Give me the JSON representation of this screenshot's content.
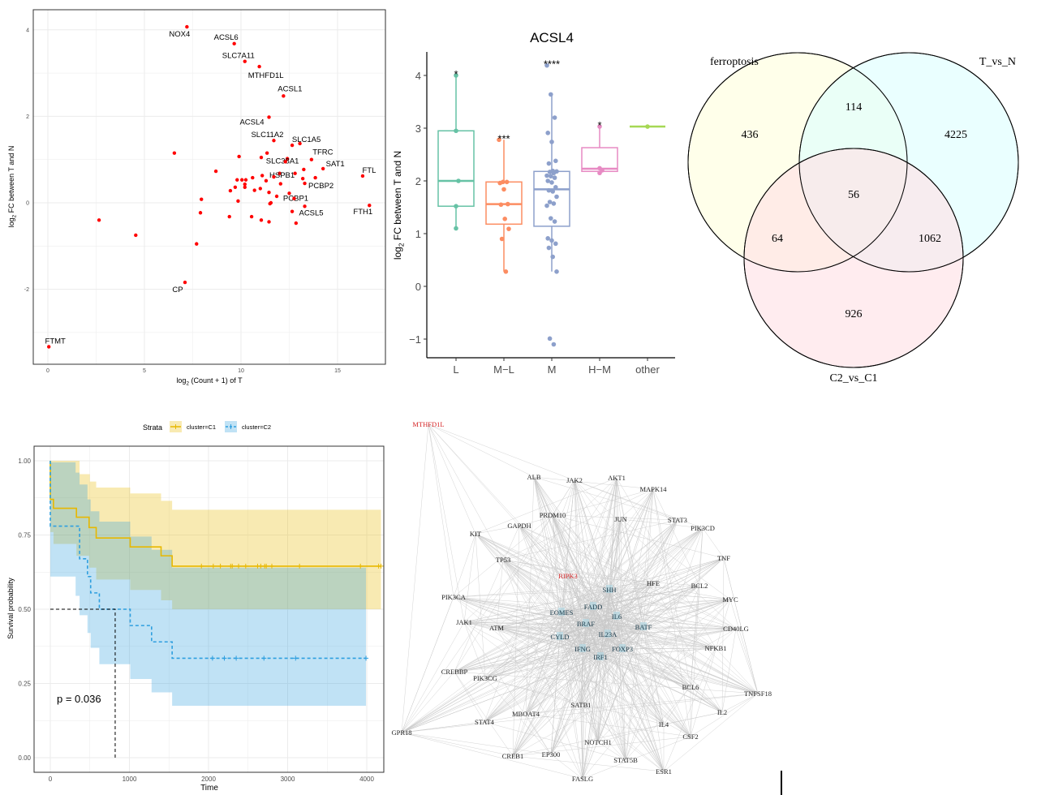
{
  "chart_data": [
    {
      "type": "scatter",
      "title": "",
      "xlabel": "log2 (Count + 1) of T",
      "xlabel_parts": [
        "log",
        "2",
        " (Count + 1) of T"
      ],
      "ylabel_parts": [
        "log",
        "2",
        " FC between T and N"
      ],
      "xlim": [
        -0.8,
        17.5
      ],
      "ylim": [
        -3.7,
        4.4
      ],
      "xticks": [
        "0",
        "5",
        "10",
        "15"
      ],
      "yticks": [
        "-2",
        "0",
        "2",
        "4"
      ],
      "grid": true,
      "point_color": "#ff0000",
      "points": [
        {
          "x": 7.2,
          "y": 4.07,
          "label": "NOX4"
        },
        {
          "x": 9.65,
          "y": 3.68,
          "label": "ACSL6"
        },
        {
          "x": 10.2,
          "y": 3.27,
          "label": "SLC7A11"
        },
        {
          "x": 10.95,
          "y": 3.15,
          "label": "MTHFD1L"
        },
        {
          "x": 12.2,
          "y": 2.47,
          "label": "ACSL1"
        },
        {
          "x": 11.45,
          "y": 1.98,
          "label": "ACSL4"
        },
        {
          "x": 11.7,
          "y": 1.44,
          "label": "SLC11A2"
        },
        {
          "x": 13.05,
          "y": 1.37,
          "label": "SLC1A5"
        },
        {
          "x": 13.65,
          "y": 1.0,
          "label": "TFRC"
        },
        {
          "x": 12.4,
          "y": 1.02,
          "label": "SLC38A1"
        },
        {
          "x": 12.0,
          "y": 0.68,
          "label": "HSPB1"
        },
        {
          "x": 14.25,
          "y": 0.79,
          "label": "SAT1"
        },
        {
          "x": 16.3,
          "y": 0.62,
          "label": "FTL"
        },
        {
          "x": 13.85,
          "y": 0.58,
          "label": "PCBP2"
        },
        {
          "x": 12.5,
          "y": 0.22,
          "label": "PCBP1"
        },
        {
          "x": 13.3,
          "y": -0.08,
          "label": "ACSL5"
        },
        {
          "x": 16.65,
          "y": -0.06,
          "label": "FTH1"
        },
        {
          "x": 7.1,
          "y": -1.84,
          "label": "CP"
        },
        {
          "x": 0.05,
          "y": -3.33,
          "label": "FTMT"
        },
        {
          "x": 6.55,
          "y": 1.15
        },
        {
          "x": 2.65,
          "y": -0.4
        },
        {
          "x": 4.55,
          "y": -0.75
        },
        {
          "x": 7.7,
          "y": -0.95
        },
        {
          "x": 7.9,
          "y": -0.23
        },
        {
          "x": 7.95,
          "y": 0.08
        },
        {
          "x": 8.7,
          "y": 0.73
        },
        {
          "x": 9.4,
          "y": -0.32
        },
        {
          "x": 9.45,
          "y": 0.28
        },
        {
          "x": 9.7,
          "y": 0.36
        },
        {
          "x": 9.8,
          "y": 0.53
        },
        {
          "x": 9.85,
          "y": 0.04
        },
        {
          "x": 9.9,
          "y": 1.07
        },
        {
          "x": 10.05,
          "y": 0.53
        },
        {
          "x": 10.2,
          "y": 0.43
        },
        {
          "x": 10.2,
          "y": 0.36
        },
        {
          "x": 10.25,
          "y": 0.53
        },
        {
          "x": 10.6,
          "y": 0.58
        },
        {
          "x": 10.55,
          "y": -0.32
        },
        {
          "x": 10.7,
          "y": 0.29
        },
        {
          "x": 11.0,
          "y": 0.33
        },
        {
          "x": 11.05,
          "y": 1.05
        },
        {
          "x": 11.05,
          "y": -0.4
        },
        {
          "x": 11.1,
          "y": 0.63
        },
        {
          "x": 11.3,
          "y": 0.51
        },
        {
          "x": 11.35,
          "y": 1.15
        },
        {
          "x": 11.45,
          "y": 0.24
        },
        {
          "x": 11.45,
          "y": -0.44
        },
        {
          "x": 11.5,
          "y": -0.02
        },
        {
          "x": 11.55,
          "y": 0.0
        },
        {
          "x": 11.7,
          "y": 0.6
        },
        {
          "x": 11.85,
          "y": 0.15
        },
        {
          "x": 12.05,
          "y": 0.44
        },
        {
          "x": 12.3,
          "y": 0.95
        },
        {
          "x": 12.65,
          "y": 1.33
        },
        {
          "x": 12.65,
          "y": -0.2
        },
        {
          "x": 12.75,
          "y": 0.1
        },
        {
          "x": 12.8,
          "y": 0.68
        },
        {
          "x": 12.85,
          "y": -0.47
        },
        {
          "x": 13.25,
          "y": 0.77
        },
        {
          "x": 13.2,
          "y": 0.56
        },
        {
          "x": 13.3,
          "y": 0.45
        }
      ]
    },
    {
      "type": "box",
      "title": "ACSL4",
      "ylabel_parts": [
        "log",
        "2",
        " FC between T and N"
      ],
      "ylim": [
        -1.3,
        4.4
      ],
      "yticks": [
        "-1",
        "0",
        "1",
        "2",
        "3",
        "4"
      ],
      "yticks_display": [
        "−1",
        "0",
        "1",
        "2",
        "3",
        "4"
      ],
      "categories": [
        "L",
        "M−L",
        "M",
        "H−M",
        "other"
      ],
      "groups": [
        {
          "name": "L",
          "color": "#66c2a5",
          "q1": 1.52,
          "median": 2.0,
          "q3": 2.95,
          "whisker_low": 1.1,
          "whisker_high": 4.0,
          "significance": "*",
          "points": [
            4.0,
            2.95,
            2.0,
            1.52,
            1.1
          ]
        },
        {
          "name": "M−L",
          "color": "#fc8d62",
          "q1": 1.18,
          "median": 1.56,
          "q3": 1.98,
          "whisker_low": 0.28,
          "whisker_high": 2.78,
          "significance": "***",
          "points": [
            2.78,
            1.98,
            1.98,
            1.96,
            1.84,
            1.56,
            1.55,
            1.28,
            1.09,
            0.9,
            0.28
          ]
        },
        {
          "name": "M",
          "color": "#8da0cb",
          "q1": 1.14,
          "median": 1.84,
          "q3": 2.18,
          "whisker_low": 0.28,
          "whisker_high": 3.64,
          "significance": "****",
          "points": [
            4.19,
            3.64,
            3.2,
            2.91,
            2.74,
            2.38,
            2.33,
            2.19,
            2.18,
            2.17,
            2.15,
            2.1,
            2.09,
            2.06,
            2.0,
            1.97,
            1.88,
            1.82,
            1.8,
            1.7,
            1.6,
            1.57,
            1.53,
            1.29,
            1.23,
            0.91,
            0.87,
            0.81,
            0.73,
            0.56,
            0.28,
            -0.99,
            -1.1
          ]
        },
        {
          "name": "H−M",
          "color": "#e78ac3",
          "q1": 2.18,
          "median": 2.23,
          "q3": 2.63,
          "whisker_low": 2.15,
          "whisker_high": 3.03,
          "significance": "*",
          "points": [
            3.03,
            2.24,
            2.2,
            2.15
          ]
        },
        {
          "name": "other",
          "color": "#a6d854",
          "q1": 3.03,
          "median": 3.03,
          "q3": 3.03,
          "whisker_low": 3.03,
          "whisker_high": 3.03,
          "significance": "",
          "points": [
            3.03
          ]
        }
      ]
    },
    {
      "type": "venn",
      "sets": [
        {
          "name": "ferroptosis",
          "color": "#ffffdc"
        },
        {
          "name": "T_vs_N",
          "color": "#dcffff"
        },
        {
          "name": "C2_vs_C1",
          "color": "#ffdfe4"
        }
      ],
      "regions": {
        "ferroptosis_only": "436",
        "T_vs_N_only": "4225",
        "C2_vs_C1_only": "926",
        "ferroptosis_T_vs_N": "114",
        "ferroptosis_C2_vs_C1": "64",
        "T_vs_N_C2_vs_C1": "1062",
        "all_three": "56"
      }
    },
    {
      "type": "line",
      "subtype": "kaplan-meier",
      "xlabel": "Time",
      "ylabel": "Survival probability",
      "xlim": [
        -200,
        4200
      ],
      "ylim": [
        -0.04,
        1.05
      ],
      "xticks": [
        "0",
        "1000",
        "2000",
        "3000",
        "4000"
      ],
      "yticks": [
        "0.00",
        "0.25",
        "0.50",
        "0.75",
        "1.00"
      ],
      "legend": {
        "title": "Strata",
        "position": "top"
      },
      "pvalue": "p = 0.036",
      "median_survival_time": 820,
      "series": [
        {
          "name": "cluster=C1",
          "color": "#e7b800",
          "ci_color": "#e7b800",
          "dashed": false,
          "steps": [
            [
              0,
              1.0
            ],
            [
              0,
              0.87
            ],
            [
              40,
              0.84
            ],
            [
              330,
              0.81
            ],
            [
              490,
              0.775
            ],
            [
              580,
              0.74
            ],
            [
              1010,
              0.71
            ],
            [
              1400,
              0.68
            ],
            [
              1540,
              0.645
            ]
          ],
          "end": 4180,
          "ci_upper": [
            [
              0,
              1.0
            ],
            [
              370,
              0.955
            ],
            [
              500,
              0.93
            ],
            [
              580,
              0.91
            ],
            [
              1010,
              0.89
            ],
            [
              1400,
              0.865
            ],
            [
              1540,
              0.835
            ]
          ],
          "ci_lower": [
            [
              0,
              0.76
            ],
            [
              40,
              0.72
            ],
            [
              330,
              0.68
            ],
            [
              490,
              0.64
            ],
            [
              580,
              0.6
            ],
            [
              1010,
              0.565
            ],
            [
              1400,
              0.53
            ],
            [
              1540,
              0.5
            ]
          ],
          "censor": [
            1910,
            2060,
            2150,
            2280,
            2300,
            2380,
            2470,
            2620,
            2660,
            2710,
            2730,
            2800,
            3150,
            3920,
            4150,
            4180
          ]
        },
        {
          "name": "cluster=C2",
          "color": "#2e9fdf",
          "ci_color": "#2e9fdf",
          "dashed": true,
          "steps": [
            [
              0,
              1.0
            ],
            [
              0,
              0.78
            ],
            [
              320,
              0.78
            ],
            [
              370,
              0.67
            ],
            [
              470,
              0.61
            ],
            [
              510,
              0.555
            ],
            [
              620,
              0.5
            ],
            [
              1010,
              0.445
            ],
            [
              1280,
              0.39
            ],
            [
              1540,
              0.335
            ]
          ],
          "end": 3990,
          "ci_upper": [
            [
              0,
              0.995
            ],
            [
              320,
              0.96
            ],
            [
              370,
              0.92
            ],
            [
              470,
              0.87
            ],
            [
              510,
              0.83
            ],
            [
              620,
              0.795
            ],
            [
              1010,
              0.745
            ],
            [
              1280,
              0.7
            ],
            [
              1540,
              0.64
            ]
          ],
          "ci_lower": [
            [
              0,
              0.61
            ],
            [
              320,
              0.545
            ],
            [
              370,
              0.48
            ],
            [
              470,
              0.42
            ],
            [
              510,
              0.37
            ],
            [
              620,
              0.315
            ],
            [
              1010,
              0.265
            ],
            [
              1280,
              0.22
            ],
            [
              1540,
              0.175
            ]
          ],
          "censor": [
            2050,
            2200,
            2350,
            2700,
            3100,
            3990
          ]
        }
      ]
    },
    {
      "type": "network",
      "highlight_color": "#d62728",
      "hub_color": "#add8e6",
      "nodes": [
        "MTHFD1L",
        "ALB",
        "JAK2",
        "AKT1",
        "MAPK14",
        "PRDM10",
        "JUN",
        "GAPDH",
        "STAT3",
        "PIK3CD",
        "KIT",
        "TP53",
        "TNF",
        "RIPK3",
        "HFE",
        "SHH",
        "BCL2",
        "PIK3CA",
        "MYC",
        "FADD",
        "EOMES",
        "IL6",
        "JAK1",
        "ATM",
        "BRAF",
        "BATF",
        "CD40LG",
        "IL23A",
        "CYLD",
        "NFKB1",
        "IFNG",
        "FOXP3",
        "IRF1",
        "CREBBP",
        "PIK3CG",
        "BCL6",
        "TNFSF18",
        "SATB1",
        "IL2",
        "MBOAT4",
        "STAT4",
        "IL4",
        "CSF2",
        "GPR18",
        "NOTCH1",
        "CREB1",
        "EP300",
        "STAT5B",
        "ESR1",
        "FASLG"
      ],
      "highlighted": [
        "MTHFD1L",
        "RIPK3"
      ],
      "hubs": [
        "SHH",
        "FADD",
        "EOMES",
        "IL6",
        "BRAF",
        "BATF",
        "IL23A",
        "CYLD",
        "IFNG",
        "FOXP3",
        "IRF1"
      ]
    }
  ]
}
